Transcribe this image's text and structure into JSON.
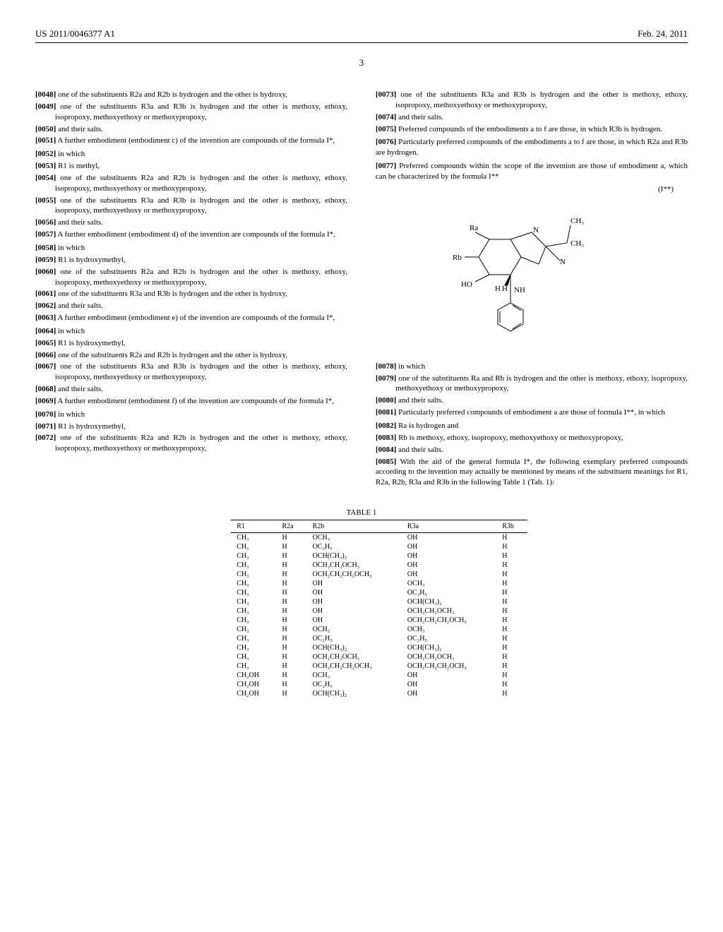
{
  "header": {
    "pubNumber": "US 2011/0046377 A1",
    "date": "Feb. 24, 2011",
    "pageNum": "3"
  },
  "leftCol": {
    "p48": "[0048]    one of the substituents R2a and R2b is hydrogen and the other is hydroxy,",
    "p49": "[0049]    one of the substituents R3a and R3b is hydrogen and the other is methoxy, ethoxy, isopropoxy, methoxyethoxy or methoxypropoxy,",
    "p50": "[0050]    and their salts.",
    "p51": "[0051]    A further embodiment (embodiment c) of the invention are compounds of the formula I*,",
    "p52": "[0052]    in which",
    "p53": "[0053]    R1 is methyl,",
    "p54": "[0054]    one of the substituents R2a and R2b is hydrogen and the other is methoxy, ethoxy, isopropoxy, methoxyethoxy or methoxypropoxy,",
    "p55": "[0055]    one of the substituents R3a and R3b is hydrogen and the other is methoxy, ethoxy, isopropoxy, methoxyethoxy or methoxypropoxy,",
    "p56": "[0056]    and their salts.",
    "p57": "[0057]    A further embodiment (embodiment d) of the invention are compounds of the formula I*,",
    "p58": "[0058]    in which",
    "p59": "[0059]    R1 is hydroxymethyl,",
    "p60": "[0060]    one of the substituents R2a and R2b is hydrogen and the other is methoxy, ethoxy, isopropoxy, methoxyethoxy or methoxypropoxy,",
    "p61": "[0061]    one of the substituents R3a and R3b is hydrogen and the other is hydroxy,",
    "p62": "[0062]    and their salts.",
    "p63": "[0063]    A further embodiment (embodiment e) of the invention are compounds of the formula I*,",
    "p64": "[0064]    in which",
    "p65": "[0065]    R1 is hydroxymethyl,",
    "p66": "[0066]    one of the substituents R2a and R2b is hydrogen and the other is hydroxy,",
    "p67": "[0067]    one of the substituents R3a and R3b is hydrogen and the other is methoxy, ethoxy, isopropoxy, methoxyethoxy or methoxypropoxy,",
    "p68": "[0068]    and their salts.",
    "p69": "[0069]    A further embodiment (embodiment f) of the invention are compounds of the formula I*,",
    "p70": "[0070]    in which",
    "p71": "[0071]    R1 is hydroxymethyl,",
    "p72": "[0072]    one of the substituents R2a and R2b is hydrogen and the other is methoxy, ethoxy, isopropoxy, methoxyethoxy or methoxypropoxy,"
  },
  "rightCol": {
    "p73": "[0073]    one of the substituents R3a and R3b is hydrogen and the other is methoxy, ethoxy, isopropoxy, methoxyethoxy or methoxypropoxy,",
    "p74": "[0074]    and their salts.",
    "p75": "[0075]    Preferred compounds of the embodiments a to f are those, in which R3b is hydrogen.",
    "p76": "[0076]    Particularly preferred compounds of the embodiments a to f are those, in which R2a and R3b are hydrogen.",
    "p77": "[0077]    Preferred compounds within the scope of the invention are those of embodiment a, which can be characterized by the formula I**",
    "formulaLabel": "(I**)",
    "p78": "[0078]    in which",
    "p79": "[0079]    one of the substituents Ra and Rb is hydrogen and the other is methoxy, ethoxy, isopropoxy, methoxyethoxy or methoxypropoxy,",
    "p80": "[0080]    and their salts.",
    "p81": "[0081]    Particularly preferred compounds of embodiment a are those of formula I**, in which",
    "p82": "[0082]    Ra is hydrogen and",
    "p83": "[0083]    Rb is methoxy, ethoxy, isopropoxy, methoxyethoxy or methoxypropoxy,",
    "p84": "[0084]    and their salts.",
    "p85": "[0085]    With the aid of the general formula I*, the following exemplary preferred compounds according to the invention may actually be mentioned by means of the substituent meanings for R1, R2a, R2b, R3a and R3b in the following Table 1 (Tab. 1):"
  },
  "structure": {
    "labels": {
      "Ra": "Ra",
      "Rb": "Rb",
      "HO": "HO",
      "NH": "NH",
      "N1": "N",
      "N2": "N",
      "CH3_1": "CH₃",
      "CH3_2": "CH₃",
      "H1": "H",
      "H2": "H"
    },
    "strokeColor": "#000000",
    "strokeWidth": 1,
    "fontSize": 10
  },
  "table": {
    "title": "TABLE 1",
    "columns": [
      "R1",
      "R2a",
      "R2b",
      "R3a",
      "R3b"
    ],
    "rows": [
      [
        "CH₃",
        "H",
        "OCH₃",
        "OH",
        "H"
      ],
      [
        "CH₃",
        "H",
        "OC₂H₅",
        "OH",
        "H"
      ],
      [
        "CH₃",
        "H",
        "OCH(CH₃)₂",
        "OH",
        "H"
      ],
      [
        "CH₃",
        "H",
        "OCH₂CH₂OCH₃",
        "OH",
        "H"
      ],
      [
        "CH₃",
        "H",
        "OCH₂CH₂CH₂OCH₃",
        "OH",
        "H"
      ],
      [
        "CH₃",
        "H",
        "OH",
        "OCH₃",
        "H"
      ],
      [
        "CH₃",
        "H",
        "OH",
        "OC₂H₅",
        "H"
      ],
      [
        "CH₃",
        "H",
        "OH",
        "OCH(CH₃)₂",
        "H"
      ],
      [
        "CH₃",
        "H",
        "OH",
        "OCH₂CH₂OCH₃",
        "H"
      ],
      [
        "CH₃",
        "H",
        "OH",
        "OCH₂CH₂CH₂OCH₃",
        "H"
      ],
      [
        "CH₃",
        "H",
        "OCH₃",
        "OCH₃",
        "H"
      ],
      [
        "CH₃",
        "H",
        "OC₂H₅",
        "OC₂H₅",
        "H"
      ],
      [
        "CH₃",
        "H",
        "OCH(CH₃)₂",
        "OCH(CH₃)₂",
        "H"
      ],
      [
        "CH₃",
        "H",
        "OCH₂CH₂OCH₃",
        "OCH₂CH₂OCH₃",
        "H"
      ],
      [
        "CH₃",
        "H",
        "OCH₂CH₂CH₂OCH₃",
        "OCH₂CH₂CH₂OCH₃",
        "H"
      ],
      [
        "CH₂OH",
        "H",
        "OCH₃",
        "OH",
        "H"
      ],
      [
        "CH₂OH",
        "H",
        "OC₂H₅",
        "OH",
        "H"
      ],
      [
        "CH₂OH",
        "H",
        "OCH(CH₃)₂",
        "OH",
        "H"
      ]
    ],
    "fontSize": 10,
    "borderColor": "#000000"
  }
}
